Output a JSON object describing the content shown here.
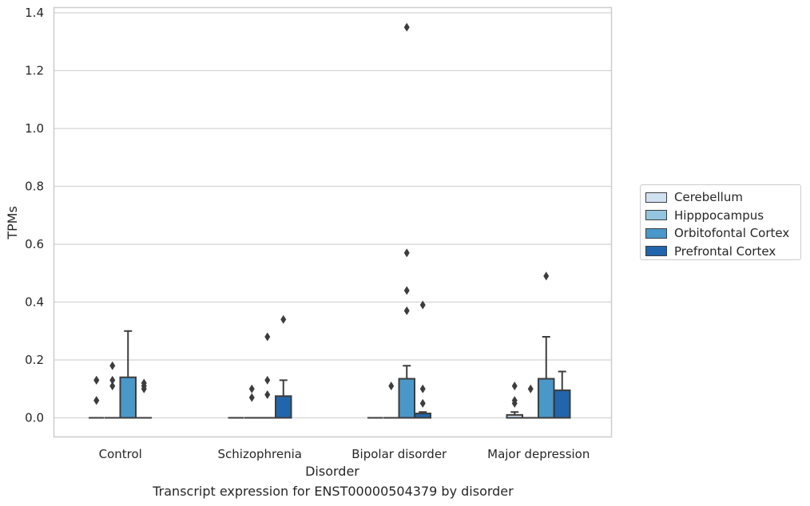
{
  "chart_data": {
    "type": "box",
    "title": "",
    "caption": "Transcript expression for ENST00000504379 by disorder",
    "xlabel": "Disorder",
    "ylabel": "TPMs",
    "ylim": [
      -0.065,
      1.42
    ],
    "yticks": [
      "0.0",
      "0.2",
      "0.4",
      "0.6",
      "0.8",
      "1.0",
      "1.2",
      "1.4"
    ],
    "ytick_values": [
      0,
      0.2,
      0.4,
      0.6,
      0.8,
      1.0,
      1.2,
      1.4
    ],
    "grid": true,
    "legend_position": "right",
    "categories": [
      "Control",
      "Schizophrenia",
      "Bipolar disorder",
      "Major depression"
    ],
    "series": [
      {
        "name": "Cerebellum",
        "color": "#d0e1f2",
        "boxes": [
          {
            "q1": 0,
            "median": 0,
            "q3": 0,
            "whisker_low": 0,
            "whisker_high": 0,
            "outliers": [
              0.06,
              0.06,
              0.13,
              0.13
            ]
          },
          {
            "q1": 0,
            "median": 0,
            "q3": 0,
            "whisker_low": 0,
            "whisker_high": 0,
            "outliers": []
          },
          {
            "q1": 0,
            "median": 0,
            "q3": 0,
            "whisker_low": 0,
            "whisker_high": 0,
            "outliers": []
          },
          {
            "q1": 0,
            "median": 0,
            "q3": 0.01,
            "whisker_low": 0,
            "whisker_high": 0.02,
            "outliers": [
              0.05,
              0.06,
              0.11
            ]
          }
        ]
      },
      {
        "name": "Hipppocampus",
        "color": "#94c4df",
        "boxes": [
          {
            "q1": 0,
            "median": 0,
            "q3": 0,
            "whisker_low": 0,
            "whisker_high": 0,
            "outliers": [
              0.11,
              0.13,
              0.18
            ]
          },
          {
            "q1": 0,
            "median": 0,
            "q3": 0,
            "whisker_low": 0,
            "whisker_high": 0,
            "outliers": [
              0.07,
              0.1
            ]
          },
          {
            "q1": 0,
            "median": 0,
            "q3": 0,
            "whisker_low": 0,
            "whisker_high": 0,
            "outliers": [
              0.11
            ]
          },
          {
            "q1": 0,
            "median": 0,
            "q3": 0,
            "whisker_low": 0,
            "whisker_high": 0,
            "outliers": [
              0.1
            ]
          }
        ]
      },
      {
        "name": "Orbitofontal Cortex",
        "color": "#4a98c9",
        "boxes": [
          {
            "q1": 0,
            "median": 0,
            "q3": 0.14,
            "whisker_low": 0,
            "whisker_high": 0.3,
            "outliers": []
          },
          {
            "q1": 0,
            "median": 0,
            "q3": 0,
            "whisker_low": 0,
            "whisker_high": 0,
            "outliers": [
              0.08,
              0.13,
              0.28
            ]
          },
          {
            "q1": 0,
            "median": 0,
            "q3": 0.135,
            "whisker_low": 0,
            "whisker_high": 0.18,
            "outliers": [
              0.37,
              0.44,
              0.57,
              1.35
            ]
          },
          {
            "q1": 0,
            "median": 0,
            "q3": 0.135,
            "whisker_low": 0,
            "whisker_high": 0.28,
            "outliers": [
              0.49
            ]
          }
        ]
      },
      {
        "name": "Prefrontal Cortex",
        "color": "#2166ac",
        "boxes": [
          {
            "q1": 0,
            "median": 0,
            "q3": 0,
            "whisker_low": 0,
            "whisker_high": 0,
            "outliers": [
              0.1,
              0.11,
              0.12
            ]
          },
          {
            "q1": 0,
            "median": 0,
            "q3": 0.075,
            "whisker_low": 0,
            "whisker_high": 0.13,
            "outliers": [
              0.34
            ]
          },
          {
            "q1": 0,
            "median": 0,
            "q3": 0.015,
            "whisker_low": 0,
            "whisker_high": 0.02,
            "outliers": [
              0.05,
              0.1,
              0.39
            ]
          },
          {
            "q1": 0,
            "median": 0,
            "q3": 0.095,
            "whisker_low": 0,
            "whisker_high": 0.16,
            "outliers": []
          }
        ]
      }
    ]
  }
}
